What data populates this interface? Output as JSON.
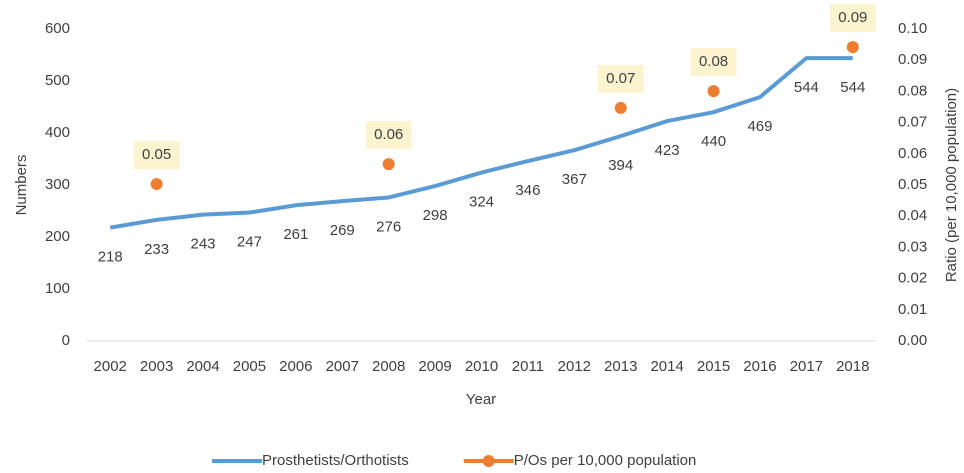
{
  "chart_data": {
    "type": "line",
    "x_label": "Year",
    "y_label": "Numbers",
    "y2_label": "Ratio (per 10,000 population)",
    "categories": [
      "2002",
      "2003",
      "2004",
      "2005",
      "2006",
      "2007",
      "2008",
      "2009",
      "2010",
      "2011",
      "2012",
      "2013",
      "2014",
      "2015",
      "2016",
      "2017",
      "2018"
    ],
    "series": [
      {
        "name": "Prosthetists/Orthotists",
        "color": "#5b9bd5",
        "type": "line",
        "values": [
          218,
          233,
          243,
          247,
          261,
          269,
          276,
          298,
          324,
          346,
          367,
          394,
          423,
          440,
          469,
          544,
          544
        ]
      },
      {
        "name": "P/Os per 10,000 population",
        "color": "#ed7d31",
        "type": "scatter",
        "axis": "y2",
        "values": [
          null,
          0.0503,
          null,
          null,
          null,
          null,
          0.0567,
          null,
          null,
          null,
          null,
          0.0747,
          null,
          0.0801,
          null,
          null,
          0.0942
        ],
        "value_labels": [
          null,
          "0.05",
          null,
          null,
          null,
          null,
          "0.06",
          null,
          null,
          null,
          null,
          "0.07",
          null,
          "0.08",
          null,
          null,
          "0.09"
        ]
      }
    ],
    "ylim": [
      0,
      600
    ],
    "yticks": [
      0,
      100,
      200,
      300,
      400,
      500,
      600
    ],
    "y2lim": [
      0,
      0.1
    ],
    "y2ticks": [
      {
        "value": 0,
        "label": "0.00"
      },
      0.01,
      0.02,
      0.03,
      0.04,
      0.05,
      0.06,
      0.07,
      0.08,
      0.09,
      {
        "value": 0.1,
        "label": "0.10"
      }
    ],
    "legend": "bottom",
    "grid": false
  }
}
